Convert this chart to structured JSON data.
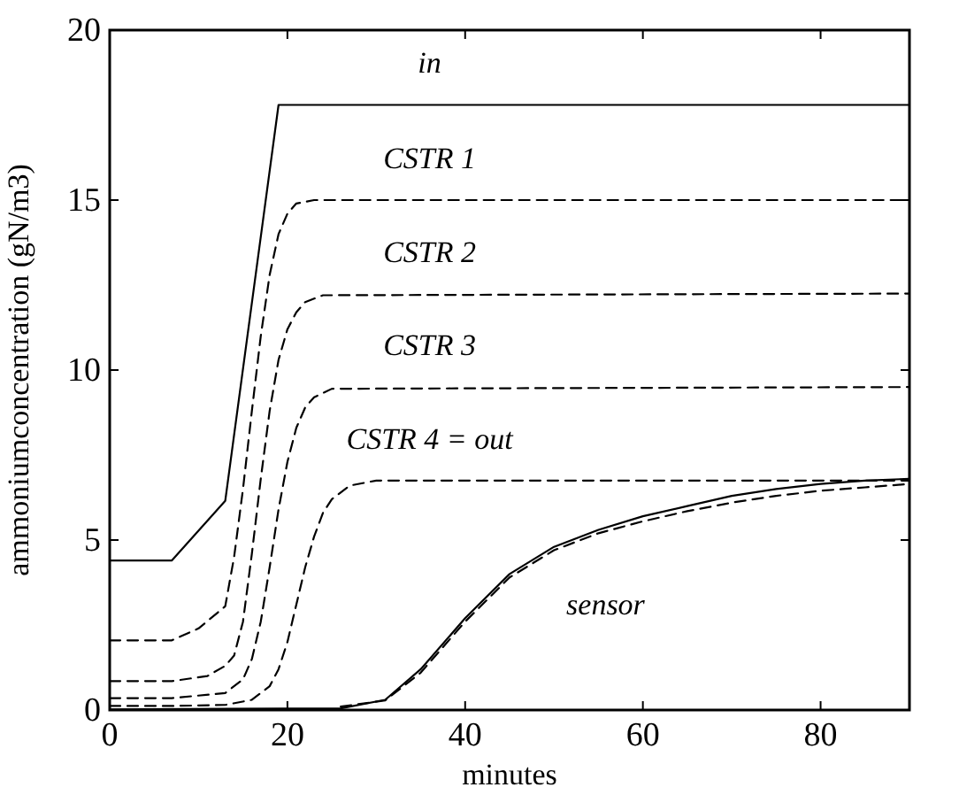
{
  "chart_data": {
    "type": "line",
    "xlabel": "minutes",
    "ylabel": "ammoniumconcentration (gN/m3)",
    "xlim": [
      0,
      90
    ],
    "ylim": [
      0,
      20
    ],
    "xticks": [
      0,
      20,
      40,
      60,
      80
    ],
    "yticks": [
      0,
      5,
      10,
      15,
      20
    ],
    "grid": false,
    "legend": "top",
    "marker": "none",
    "series": [
      {
        "name": "in",
        "color": "#000000",
        "line_style": "solid",
        "x": [
          0,
          7,
          13,
          19,
          90
        ],
        "values": [
          4.4,
          4.4,
          6.15,
          17.8,
          17.8
        ]
      },
      {
        "name": "CSTR 1",
        "color": "#000000",
        "line_style": "dashed",
        "x": [
          0,
          7,
          10,
          13,
          14,
          15,
          16,
          17,
          18,
          19,
          20,
          21,
          23,
          90
        ],
        "values": [
          2.05,
          2.05,
          2.4,
          3.05,
          4.5,
          6.5,
          8.8,
          11,
          12.8,
          14,
          14.6,
          14.9,
          15,
          15
        ]
      },
      {
        "name": "CSTR 2",
        "color": "#000000",
        "line_style": "dashed",
        "x": [
          0,
          7,
          11,
          13,
          14,
          15,
          16,
          17,
          18,
          19,
          20,
          21,
          22,
          24,
          90
        ],
        "values": [
          0.85,
          0.85,
          1,
          1.3,
          1.6,
          2.6,
          4.6,
          6.8,
          8.8,
          10.3,
          11.2,
          11.7,
          12,
          12.2,
          12.25
        ]
      },
      {
        "name": "CSTR 3",
        "color": "#000000",
        "line_style": "dashed",
        "x": [
          0,
          7,
          13,
          15,
          16,
          17,
          18,
          19,
          20,
          21,
          22,
          23,
          25,
          90
        ],
        "values": [
          0.35,
          0.35,
          0.5,
          0.9,
          1.5,
          2.6,
          4.2,
          5.9,
          7.3,
          8.3,
          8.9,
          9.2,
          9.45,
          9.5
        ]
      },
      {
        "name": "CSTR 4 = out",
        "color": "#000000",
        "line_style": "dashed",
        "x": [
          0,
          7,
          13,
          16,
          18,
          19,
          20,
          21,
          22,
          23,
          24,
          25,
          27,
          30,
          90
        ],
        "values": [
          0.12,
          0.12,
          0.15,
          0.3,
          0.7,
          1.2,
          2,
          3.1,
          4.2,
          5.1,
          5.8,
          6.2,
          6.6,
          6.75,
          6.75
        ]
      },
      {
        "color": "#000000",
        "line_style": "solid",
        "x": [
          0,
          26,
          31,
          35,
          40,
          45,
          50,
          55,
          60,
          65,
          70,
          75,
          80,
          85,
          90
        ],
        "values": [
          0.02,
          0.05,
          0.3,
          1.2,
          2.7,
          4,
          4.8,
          5.3,
          5.7,
          6,
          6.3,
          6.5,
          6.65,
          6.75,
          6.8
        ]
      },
      {
        "color": "#000000",
        "line_style": "dashed",
        "x": [
          26,
          31,
          35,
          40,
          45,
          50,
          55,
          60,
          65,
          70,
          75,
          80,
          85,
          90
        ],
        "values": [
          0.1,
          0.28,
          1.1,
          2.6,
          3.9,
          4.7,
          5.2,
          5.55,
          5.85,
          6.1,
          6.3,
          6.45,
          6.55,
          6.65
        ]
      }
    ],
    "annotations": [
      "sensor"
    ]
  }
}
